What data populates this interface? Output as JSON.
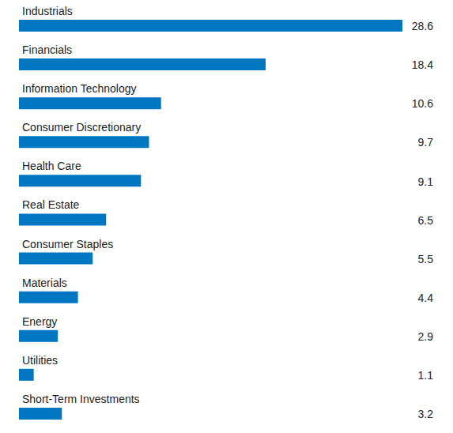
{
  "chart_data": {
    "type": "bar",
    "orientation": "horizontal",
    "categories": [
      "Industrials",
      "Financials",
      "Information Technology",
      "Consumer Discretionary",
      "Health Care",
      "Real Estate",
      "Consumer Staples",
      "Materials",
      "Energy",
      "Utilities",
      "Short-Term Investments"
    ],
    "values": [
      28.6,
      18.4,
      10.6,
      9.7,
      9.1,
      6.5,
      5.5,
      4.4,
      2.9,
      1.1,
      3.2
    ],
    "color": "#0077c0",
    "xlim": [
      0,
      28.6
    ],
    "tick_labels": false,
    "data_labels": true,
    "grid": false
  }
}
